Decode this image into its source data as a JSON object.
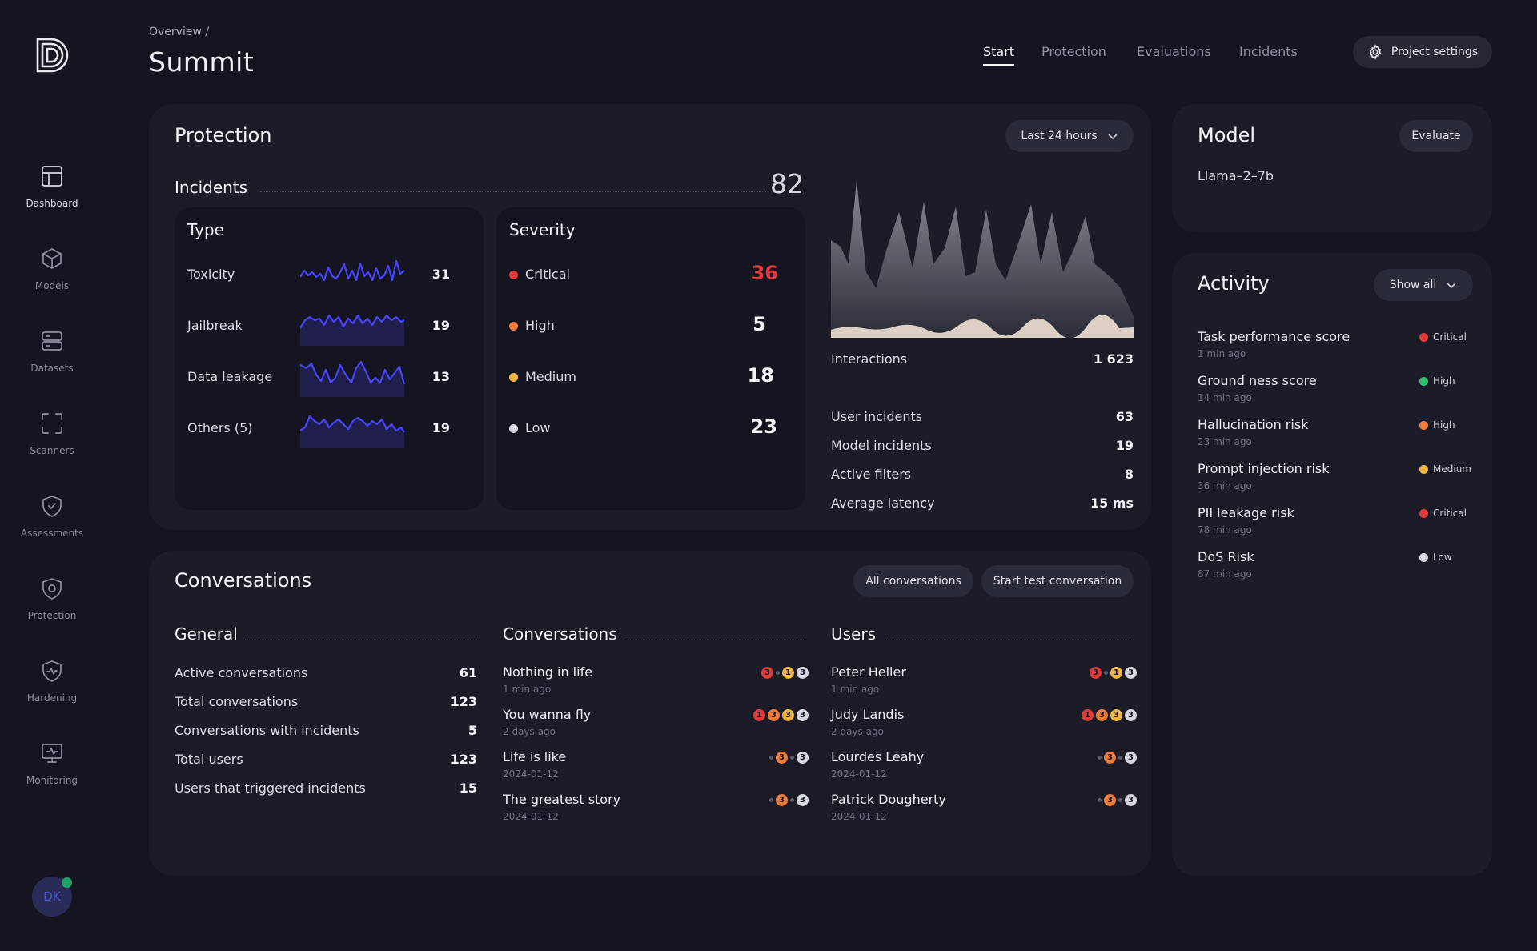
{
  "colors": {
    "critical": "#e03a3a",
    "high": "#ef7b39",
    "medium": "#f0b440",
    "low": "#d6d6de",
    "accent": "#4a44ff",
    "good": "#2fbf71"
  },
  "sidebar": {
    "items": [
      {
        "label": "Dashboard",
        "icon": "dashboard-icon"
      },
      {
        "label": "Models",
        "icon": "cube-icon"
      },
      {
        "label": "Datasets",
        "icon": "database-icon"
      },
      {
        "label": "Scanners",
        "icon": "scan-icon"
      },
      {
        "label": "Assessments",
        "icon": "shield-check-icon"
      },
      {
        "label": "Protection",
        "icon": "shield-icon"
      },
      {
        "label": "Hardening",
        "icon": "shield-pulse-icon"
      },
      {
        "label": "Monitoring",
        "icon": "monitor-icon"
      }
    ],
    "user_initials": "DK"
  },
  "header": {
    "breadcrumb": "Overview /",
    "title": "Summit",
    "tabs": [
      "Start",
      "Protection",
      "Evaluations",
      "Incidents"
    ],
    "settings_label": "Project settings"
  },
  "protection": {
    "title": "Protection",
    "range": "Last 24 hours",
    "incidents_label": "Incidents",
    "incidents_total": "82",
    "type_title": "Type",
    "types": [
      {
        "label": "Toxicity",
        "value": "31"
      },
      {
        "label": "Jailbreak",
        "value": "19"
      },
      {
        "label": "Data leakage",
        "value": "13"
      },
      {
        "label": "Others (5)",
        "value": "19"
      }
    ],
    "severity_title": "Severity",
    "severities": [
      {
        "label": "Critical",
        "value": "36"
      },
      {
        "label": "High",
        "value": "5"
      },
      {
        "label": "Medium",
        "value": "18"
      },
      {
        "label": "Low",
        "value": "23"
      }
    ],
    "interactions_label": "Interactions",
    "interactions_value": "1 623",
    "stats": [
      {
        "label": "User incidents",
        "value": "63"
      },
      {
        "label": "Model incidents",
        "value": "19"
      },
      {
        "label": "Active filters",
        "value": "8"
      },
      {
        "label": "Average latency",
        "value": "15 ms"
      }
    ]
  },
  "model": {
    "title": "Model",
    "button": "Evaluate",
    "name": "Llama–2–7b"
  },
  "activity": {
    "title": "Activity",
    "filter": "Show all",
    "items": [
      {
        "title": "Task performance score",
        "time": "1 min ago",
        "severity": "Critical",
        "color": "#e03a3a"
      },
      {
        "title": "Ground ness score",
        "time": "14 min ago",
        "severity": "High",
        "color": "#2fbf71"
      },
      {
        "title": "Hallucination risk",
        "time": "23 min ago",
        "severity": "High",
        "color": "#ef7b39"
      },
      {
        "title": "Prompt injection risk",
        "time": "36 min ago",
        "severity": "Medium",
        "color": "#f0b440"
      },
      {
        "title": "PII leakage risk",
        "time": "78 min ago",
        "severity": "Critical",
        "color": "#e03a3a"
      },
      {
        "title": "DoS Risk",
        "time": "87 min ago",
        "severity": "Low",
        "color": "#d6d6de"
      }
    ]
  },
  "conversations": {
    "title": "Conversations",
    "btn_all": "All conversations",
    "btn_test": "Start test conversation",
    "general_title": "General",
    "general": [
      {
        "label": "Active conversations",
        "value": "61"
      },
      {
        "label": "Total conversations",
        "value": "123"
      },
      {
        "label": "Conversations with incidents",
        "value": "5"
      },
      {
        "label": "Total users",
        "value": "123"
      },
      {
        "label": "Users that triggered incidents",
        "value": "15"
      }
    ],
    "conv_title": "Conversations",
    "conv_items": [
      {
        "name": "Nothing in life",
        "time": "1 min ago",
        "badges": [
          [
            "red",
            "3"
          ],
          [
            "sm",
            ""
          ],
          [
            "yel",
            "1"
          ],
          [
            "gry",
            "3"
          ]
        ]
      },
      {
        "name": "You wanna fly",
        "time": "2 days ago",
        "badges": [
          [
            "red",
            "1"
          ],
          [
            "org",
            "3"
          ],
          [
            "yel",
            "3"
          ],
          [
            "gry",
            "3"
          ]
        ]
      },
      {
        "name": "Life is like",
        "time": "2024-01-12",
        "badges": [
          [
            "sm",
            ""
          ],
          [
            "org",
            "3"
          ],
          [
            "sm",
            ""
          ],
          [
            "gry",
            "3"
          ]
        ]
      },
      {
        "name": "The greatest story",
        "time": "2024-01-12",
        "badges": [
          [
            "sm",
            ""
          ],
          [
            "org",
            "3"
          ],
          [
            "sm",
            ""
          ],
          [
            "gry",
            "3"
          ]
        ]
      }
    ],
    "users_title": "Users",
    "users": [
      {
        "name": "Peter Heller",
        "time": "1 min ago",
        "badges": [
          [
            "red",
            "3"
          ],
          [
            "sm",
            ""
          ],
          [
            "yel",
            "1"
          ],
          [
            "gry",
            "3"
          ]
        ]
      },
      {
        "name": "Judy Landis",
        "time": "2 days ago",
        "badges": [
          [
            "red",
            "1"
          ],
          [
            "org",
            "3"
          ],
          [
            "yel",
            "3"
          ],
          [
            "gry",
            "3"
          ]
        ]
      },
      {
        "name": "Lourdes Leahy",
        "time": "2024-01-12",
        "badges": [
          [
            "sm",
            ""
          ],
          [
            "org",
            "3"
          ],
          [
            "sm",
            ""
          ],
          [
            "gry",
            "3"
          ]
        ]
      },
      {
        "name": "Patrick Dougherty",
        "time": "2024-01-12",
        "badges": [
          [
            "sm",
            ""
          ],
          [
            "org",
            "3"
          ],
          [
            "sm",
            ""
          ],
          [
            "gry",
            "3"
          ]
        ]
      }
    ]
  }
}
